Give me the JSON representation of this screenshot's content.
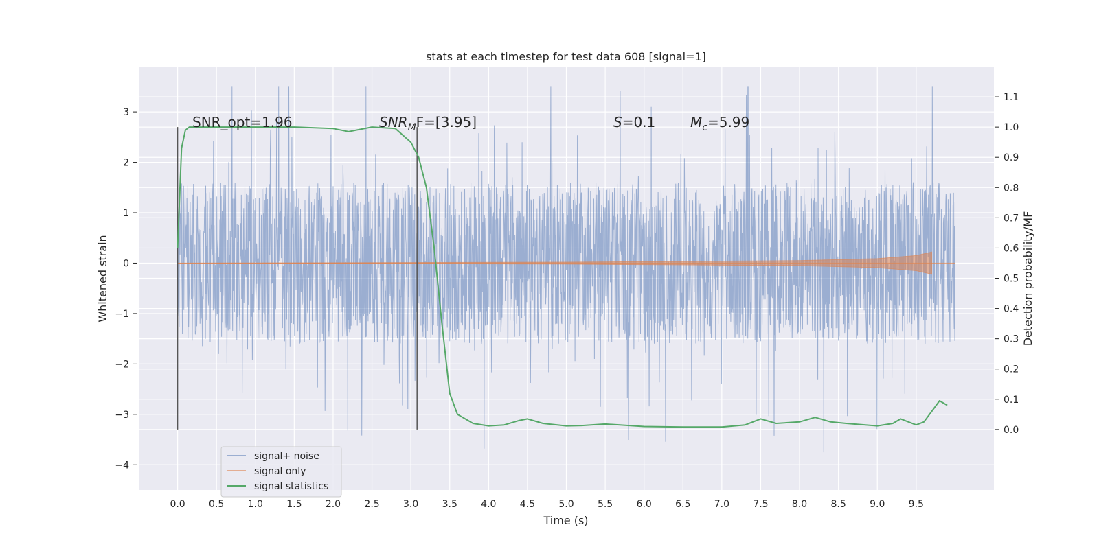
{
  "chart_data": {
    "type": "line",
    "title": "stats at each timestep for test data 608 [signal=1]",
    "xlabel": "Time (s)",
    "ylabel": "Whitened strain",
    "y2label": "Detection probability/MF",
    "xlim": [
      -0.5,
      10.5
    ],
    "ylim": [
      -4.5,
      3.9
    ],
    "y2lim": [
      -0.2,
      1.2
    ],
    "x_ticks": [
      "0.0",
      "0.5",
      "1.0",
      "1.5",
      "2.0",
      "2.5",
      "3.0",
      "3.5",
      "4.0",
      "4.5",
      "5.0",
      "5.5",
      "6.0",
      "6.5",
      "7.0",
      "7.5",
      "8.0",
      "8.5",
      "9.0",
      "9.5"
    ],
    "y_ticks": [
      "3",
      "2",
      "1",
      "0",
      "−1",
      "−2",
      "−3",
      "−4"
    ],
    "y2_ticks": [
      "1.1",
      "1.0",
      "0.9",
      "0.8",
      "0.7",
      "0.6",
      "0.5",
      "0.4",
      "0.3",
      "0.2",
      "0.1",
      "0.0"
    ],
    "grid": true,
    "legend_position": "lower-left",
    "vlines_x": [
      0.0,
      3.08
    ],
    "annotations": {
      "snr_opt": "SNR_opt=1.96",
      "snr_mf_main": "SNR",
      "snr_mf_sub": "M",
      "snr_mf_rest": "F=[3.95]",
      "s_sym": "S",
      "s_rest": "=0.1",
      "mc_sym": "M",
      "mc_sub": "c",
      "mc_rest": "=5.99"
    },
    "series": [
      {
        "name": "signal+ noise",
        "color": "#4c72b0",
        "x_range": [
          0.0,
          10.0
        ],
        "typical_amplitude": 1.6,
        "peak_max": 3.5,
        "peak_min": -4.05
      },
      {
        "name": "signal only",
        "color": "#dd8452",
        "x_range": [
          0.0,
          10.0
        ],
        "envelope": {
          "x": [
            0.0,
            5.0,
            8.0,
            9.0,
            9.5,
            9.7
          ],
          "amplitude": [
            0.0,
            0.02,
            0.05,
            0.09,
            0.15,
            0.22
          ]
        }
      },
      {
        "name": "signal statistics",
        "color": "#55a868",
        "axis": "right",
        "x": [
          0.0,
          0.05,
          0.1,
          0.15,
          0.3,
          0.5,
          1.0,
          1.5,
          2.0,
          2.2,
          2.5,
          2.8,
          3.0,
          3.1,
          3.2,
          3.3,
          3.4,
          3.5,
          3.6,
          3.8,
          4.0,
          4.2,
          4.4,
          4.5,
          4.7,
          5.0,
          5.2,
          5.5,
          6.0,
          6.5,
          7.0,
          7.3,
          7.5,
          7.7,
          8.0,
          8.2,
          8.4,
          8.6,
          9.0,
          9.2,
          9.3,
          9.4,
          9.5,
          9.6,
          9.7,
          9.8,
          9.9
        ],
        "y": [
          0.6,
          0.93,
          0.99,
          1.0,
          1.0,
          1.0,
          1.0,
          1.0,
          0.995,
          0.985,
          1.0,
          0.995,
          0.95,
          0.9,
          0.8,
          0.6,
          0.35,
          0.12,
          0.05,
          0.02,
          0.012,
          0.015,
          0.03,
          0.035,
          0.02,
          0.012,
          0.013,
          0.018,
          0.01,
          0.008,
          0.008,
          0.015,
          0.035,
          0.02,
          0.025,
          0.04,
          0.025,
          0.02,
          0.012,
          0.02,
          0.035,
          0.025,
          0.015,
          0.025,
          0.06,
          0.095,
          0.08
        ]
      }
    ]
  }
}
